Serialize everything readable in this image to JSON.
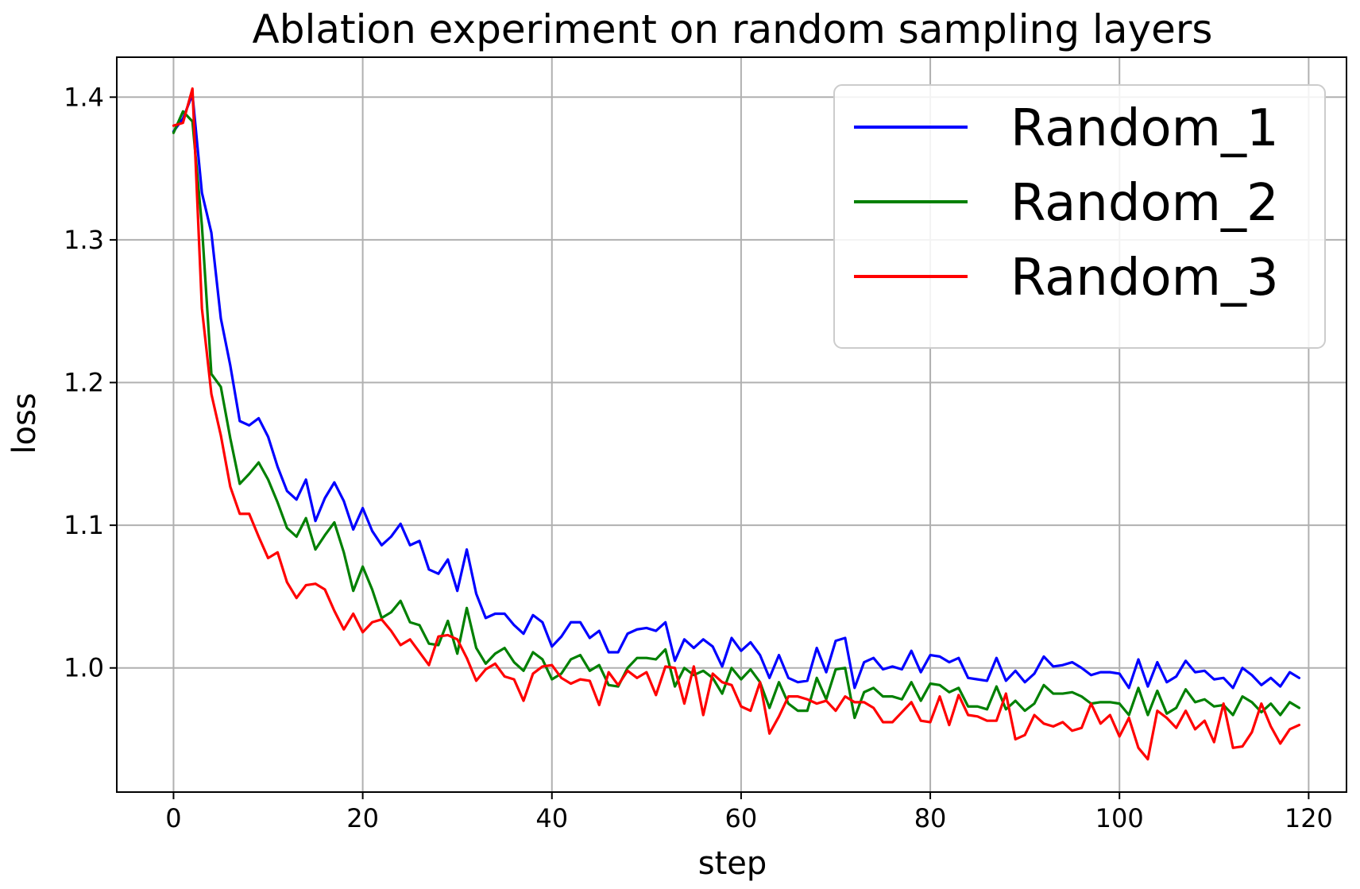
{
  "chart_data": {
    "type": "line",
    "title": "Ablation experiment on random sampling layers",
    "xlabel": "step",
    "ylabel": "loss",
    "xlim": [
      -6,
      124
    ],
    "ylim": [
      0.913,
      1.428
    ],
    "x_ticks": [
      0,
      20,
      40,
      60,
      80,
      100,
      120
    ],
    "y_ticks": [
      1.0,
      1.1,
      1.2,
      1.3,
      1.4
    ],
    "y_tick_labels": [
      "1.0",
      "1.1",
      "1.2",
      "1.3",
      "1.4"
    ],
    "grid": true,
    "legend_position": "top-right",
    "x": [
      0,
      1,
      2,
      3,
      4,
      5,
      6,
      7,
      8,
      9,
      10,
      11,
      12,
      13,
      14,
      15,
      16,
      17,
      18,
      19,
      20,
      21,
      22,
      23,
      24,
      25,
      26,
      27,
      28,
      29,
      30,
      31,
      32,
      33,
      34,
      35,
      36,
      37,
      38,
      39,
      40,
      41,
      42,
      43,
      44,
      45,
      46,
      47,
      48,
      49,
      50,
      51,
      52,
      53,
      54,
      55,
      56,
      57,
      58,
      59,
      60,
      61,
      62,
      63,
      64,
      65,
      66,
      67,
      68,
      69,
      70,
      71,
      72,
      73,
      74,
      75,
      76,
      77,
      78,
      79,
      80,
      81,
      82,
      83,
      84,
      85,
      86,
      87,
      88,
      89,
      90,
      91,
      92,
      93,
      94,
      95,
      96,
      97,
      98,
      99,
      100,
      101,
      102,
      103,
      104,
      105,
      106,
      107,
      108,
      109,
      110,
      111,
      112,
      113,
      114,
      115,
      116,
      117,
      118,
      119
    ],
    "series": [
      {
        "name": "Random_1",
        "color": "#0000ff",
        "values": [
          1.376,
          1.385,
          1.402,
          1.333,
          1.305,
          1.245,
          1.212,
          1.173,
          1.17,
          1.175,
          1.162,
          1.141,
          1.124,
          1.118,
          1.132,
          1.103,
          1.119,
          1.13,
          1.117,
          1.097,
          1.112,
          1.096,
          1.086,
          1.092,
          1.101,
          1.086,
          1.089,
          1.069,
          1.066,
          1.076,
          1.054,
          1.083,
          1.052,
          1.035,
          1.038,
          1.038,
          1.03,
          1.024,
          1.037,
          1.032,
          1.015,
          1.022,
          1.032,
          1.032,
          1.021,
          1.026,
          1.011,
          1.011,
          1.024,
          1.027,
          1.028,
          1.026,
          1.032,
          1.005,
          1.02,
          1.014,
          1.02,
          1.015,
          1.001,
          1.021,
          1.012,
          1.018,
          1.009,
          0.993,
          1.009,
          0.993,
          0.99,
          0.991,
          1.014,
          0.997,
          1.019,
          1.021,
          0.986,
          1.004,
          1.007,
          0.999,
          1.001,
          0.999,
          1.012,
          0.997,
          1.009,
          1.008,
          1.004,
          1.007,
          0.993,
          0.992,
          0.991,
          1.007,
          0.991,
          0.998,
          0.99,
          0.996,
          1.008,
          1.001,
          1.002,
          1.004,
          1.0,
          0.995,
          0.997,
          0.997,
          0.996,
          0.986,
          1.006,
          0.987,
          1.004,
          0.99,
          0.994,
          1.005,
          0.997,
          0.998,
          0.992,
          0.993,
          0.986,
          1.0,
          0.995,
          0.988,
          0.993,
          0.987,
          0.997,
          0.993
        ]
      },
      {
        "name": "Random_2",
        "color": "#008000",
        "values": [
          1.375,
          1.39,
          1.383,
          1.31,
          1.206,
          1.197,
          1.161,
          1.129,
          1.136,
          1.144,
          1.132,
          1.116,
          1.098,
          1.092,
          1.105,
          1.083,
          1.093,
          1.102,
          1.081,
          1.054,
          1.071,
          1.055,
          1.035,
          1.039,
          1.047,
          1.032,
          1.03,
          1.017,
          1.016,
          1.033,
          1.01,
          1.042,
          1.014,
          1.003,
          1.01,
          1.014,
          1.004,
          0.998,
          1.011,
          1.006,
          0.992,
          0.996,
          1.006,
          1.009,
          0.998,
          1.002,
          0.988,
          0.987,
          1.0,
          1.007,
          1.007,
          1.006,
          1.013,
          0.987,
          1.0,
          0.995,
          0.998,
          0.993,
          0.982,
          1.0,
          0.992,
          0.999,
          0.99,
          0.972,
          0.99,
          0.975,
          0.97,
          0.97,
          0.993,
          0.978,
          0.999,
          1.0,
          0.965,
          0.983,
          0.986,
          0.98,
          0.98,
          0.978,
          0.99,
          0.977,
          0.989,
          0.988,
          0.983,
          0.986,
          0.973,
          0.973,
          0.971,
          0.987,
          0.971,
          0.977,
          0.97,
          0.975,
          0.988,
          0.982,
          0.982,
          0.983,
          0.98,
          0.975,
          0.976,
          0.976,
          0.975,
          0.967,
          0.986,
          0.967,
          0.984,
          0.968,
          0.972,
          0.985,
          0.976,
          0.978,
          0.973,
          0.974,
          0.967,
          0.98,
          0.976,
          0.969,
          0.975,
          0.967,
          0.976,
          0.972
        ]
      },
      {
        "name": "Random_3",
        "color": "#ff0000",
        "values": [
          1.38,
          1.382,
          1.406,
          1.252,
          1.192,
          1.163,
          1.127,
          1.108,
          1.108,
          1.092,
          1.077,
          1.081,
          1.06,
          1.049,
          1.058,
          1.059,
          1.055,
          1.04,
          1.027,
          1.038,
          1.025,
          1.032,
          1.034,
          1.026,
          1.016,
          1.02,
          1.011,
          1.002,
          1.022,
          1.023,
          1.02,
          1.007,
          0.991,
          0.999,
          1.003,
          0.994,
          0.992,
          0.977,
          0.996,
          1.001,
          1.002,
          0.993,
          0.989,
          0.992,
          0.991,
          0.974,
          0.997,
          0.988,
          0.998,
          0.993,
          0.997,
          0.981,
          1.001,
          1.0,
          0.975,
          1.001,
          0.967,
          0.996,
          0.99,
          0.988,
          0.973,
          0.97,
          0.99,
          0.954,
          0.966,
          0.98,
          0.98,
          0.978,
          0.975,
          0.977,
          0.97,
          0.98,
          0.976,
          0.976,
          0.972,
          0.962,
          0.962,
          0.969,
          0.976,
          0.963,
          0.962,
          0.98,
          0.96,
          0.981,
          0.967,
          0.966,
          0.963,
          0.963,
          0.982,
          0.95,
          0.953,
          0.967,
          0.961,
          0.959,
          0.962,
          0.956,
          0.958,
          0.975,
          0.961,
          0.967,
          0.952,
          0.965,
          0.944,
          0.936,
          0.97,
          0.965,
          0.958,
          0.97,
          0.957,
          0.963,
          0.948,
          0.975,
          0.944,
          0.945,
          0.955,
          0.975,
          0.959,
          0.947,
          0.957,
          0.96
        ]
      }
    ]
  }
}
